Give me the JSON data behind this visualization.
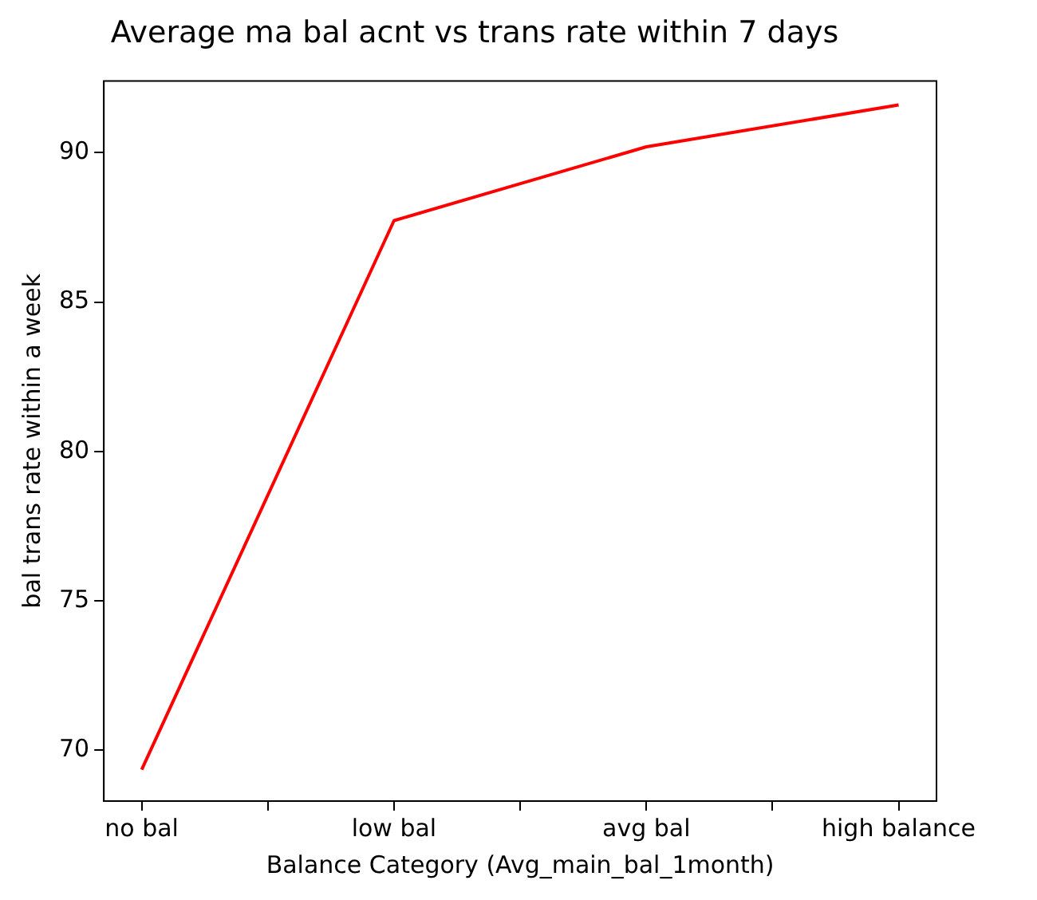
{
  "chart_data": {
    "type": "line",
    "title": "Average ma bal acnt vs trans rate within 7 days",
    "xlabel": "Balance Category (Avg_main_bal_1month)",
    "ylabel": "bal trans rate within a week",
    "categories": [
      "no bal",
      "low bal",
      "avg bal",
      "high balance"
    ],
    "series": [
      {
        "color": "#ff0000",
        "values": [
          69.35,
          87.73,
          90.2,
          91.6
        ]
      }
    ],
    "ylim": [
      68.3,
      92.4
    ],
    "yticks": [
      70,
      75,
      80,
      85,
      90
    ],
    "grid": false,
    "legend": false,
    "marker": "none",
    "line_style": "solid"
  }
}
